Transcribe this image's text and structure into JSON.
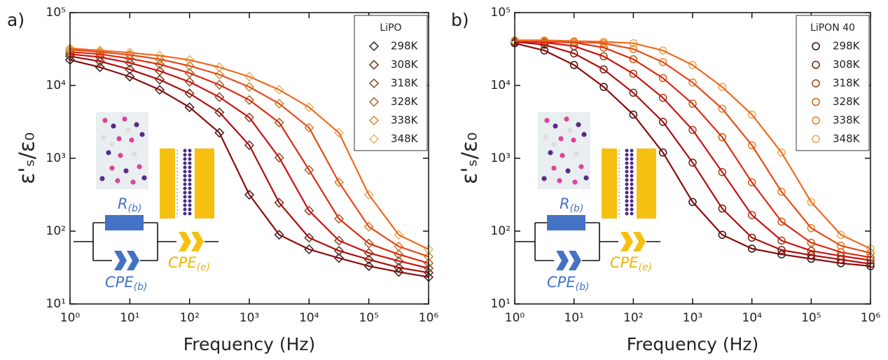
{
  "chart_data": [
    {
      "type": "scatter",
      "panel_label": "a)",
      "x_label": "Frequency (Hz)",
      "y_label": "ε'ₛ/ε₀",
      "legend_title": "LiPO",
      "legend": "upper right",
      "marker": "diamond",
      "xscale": "log",
      "yscale": "log",
      "xlim": [
        1,
        1000000
      ],
      "ylim": [
        10,
        100000
      ],
      "xticks": [
        {
          "value": 1,
          "label": "10⁰"
        },
        {
          "value": 10,
          "label": "10¹"
        },
        {
          "value": 100,
          "label": "10²"
        },
        {
          "value": 1000,
          "label": "10³"
        },
        {
          "value": 10000,
          "label": "10⁴"
        },
        {
          "value": 100000,
          "label": "10⁵"
        },
        {
          "value": 1000000,
          "label": "10⁶"
        }
      ],
      "yticks": [
        {
          "value": 10,
          "label": "10¹"
        },
        {
          "value": 100,
          "label": "10²"
        },
        {
          "value": 1000,
          "label": "10³"
        },
        {
          "value": 10000,
          "label": "10⁴"
        },
        {
          "value": 100000,
          "label": "10⁵"
        }
      ],
      "x": [
        1,
        3.162,
        10,
        31.62,
        100,
        316.2,
        1000,
        3162,
        10000,
        31620,
        100000,
        316200,
        1000000
      ],
      "series": [
        {
          "name": "298K",
          "color": "#3a1c1c",
          "fit_color": "#8b0a0a",
          "values": [
            22400,
            17800,
            13200,
            8710,
            5010,
            2240,
            316,
            89.1,
            56.2,
            42.7,
            33.1,
            27.5,
            23.4
          ]
        },
        {
          "name": "308K",
          "color": "#5e3322",
          "fit_color": "#b00c0c",
          "values": [
            25100,
            21400,
            16600,
            12000,
            7760,
            4270,
            1510,
            245,
            81.3,
            53.7,
            40.7,
            31.6,
            26.9
          ]
        },
        {
          "name": "318K",
          "color": "#7e4b2a",
          "fit_color": "#d01010",
          "values": [
            26900,
            24500,
            20400,
            15800,
            11200,
            6920,
            3630,
            1020,
            191,
            74.1,
            50.1,
            38.9,
            30.9
          ]
        },
        {
          "name": "328K",
          "color": "#a5662c",
          "fit_color": "#e02a10",
          "values": [
            28800,
            26900,
            23400,
            19500,
            14800,
            10200,
            6310,
            3090,
            692,
            148,
            67.6,
            47.9,
            36.3
          ]
        },
        {
          "name": "338K",
          "color": "#cc8a30",
          "fit_color": "#e84a18",
          "values": [
            30900,
            28800,
            26300,
            22900,
            18600,
            14100,
            9550,
            5620,
            2630,
            468,
            115,
            61.7,
            44.7
          ]
        },
        {
          "name": "348K",
          "color": "#eab465",
          "fit_color": "#f06a20",
          "values": [
            32400,
            30200,
            28200,
            25700,
            22400,
            17800,
            13200,
            8710,
            5010,
            2240,
            316,
            89.1,
            56.2
          ]
        }
      ],
      "inset_labels": [
        {
          "text": "R",
          "sub": "(b)"
        },
        {
          "text": "CPE",
          "sub": "(b)"
        },
        {
          "text": "CPE",
          "sub": "(e)"
        }
      ]
    },
    {
      "type": "scatter",
      "panel_label": "b)",
      "x_label": "Frequency (Hz)",
      "y_label": "ε'ₛ/ε₀",
      "legend_title": "LiPON 40",
      "legend": "upper right",
      "marker": "circle",
      "xscale": "log",
      "yscale": "log",
      "xlim": [
        1,
        1000000
      ],
      "ylim": [
        10,
        100000
      ],
      "xticks": [
        {
          "value": 1,
          "label": "10⁰"
        },
        {
          "value": 10,
          "label": "10¹"
        },
        {
          "value": 100,
          "label": "10²"
        },
        {
          "value": 1000,
          "label": "10³"
        },
        {
          "value": 10000,
          "label": "10⁴"
        },
        {
          "value": 100000,
          "label": "10⁵"
        },
        {
          "value": 1000000,
          "label": "10⁶"
        }
      ],
      "yticks": [
        {
          "value": 10,
          "label": "10¹"
        },
        {
          "value": 100,
          "label": "10²"
        },
        {
          "value": 1000,
          "label": "10³"
        },
        {
          "value": 10000,
          "label": "10⁴"
        },
        {
          "value": 100000,
          "label": "10⁵"
        }
      ],
      "x": [
        1,
        3.162,
        10,
        31.62,
        100,
        316.2,
        1000,
        3162,
        10000,
        31620,
        100000,
        316200,
        1000000
      ],
      "series": [
        {
          "name": "298K",
          "color": "#2c1010",
          "fit_color": "#8b0a0a",
          "values": [
            38000,
            30200,
            19100,
            9550,
            3980,
            1200,
            251,
            89.1,
            57.5,
            47.9,
            41.7,
            36.3,
            33.1
          ]
        },
        {
          "name": "308K",
          "color": "#6c2212",
          "fit_color": "#b00c0c",
          "values": [
            39800,
            36300,
            27500,
            16600,
            7940,
            3160,
            871,
            204,
            81.3,
            55.0,
            46.8,
            40.7,
            35.5
          ]
        },
        {
          "name": "318K",
          "color": "#a24212",
          "fit_color": "#d01010",
          "values": [
            40700,
            38900,
            34700,
            25100,
            14500,
            6760,
            2450,
            646,
            166,
            74.1,
            53.7,
            45.7,
            39.8
          ]
        },
        {
          "name": "328K",
          "color": "#c86212",
          "fit_color": "#e02a10",
          "values": [
            40700,
            39800,
            38900,
            33100,
            22900,
            12600,
            5620,
            1950,
            468,
            135,
            69.2,
            51.3,
            43.7
          ]
        },
        {
          "name": "338K",
          "color": "#e08222",
          "fit_color": "#e84a18",
          "values": [
            41700,
            40700,
            39800,
            38000,
            31600,
            20900,
            11000,
            4790,
            1510,
            347,
            110,
            63.1,
            50.1
          ]
        },
        {
          "name": "348K",
          "color": "#f0a845",
          "fit_color": "#f06a20",
          "values": [
            41700,
            41700,
            40700,
            39800,
            38000,
            30200,
            19100,
            9550,
            3980,
            1200,
            251,
            89.1,
            57.5
          ]
        }
      ],
      "inset_labels": [
        {
          "text": "R",
          "sub": "(b)"
        },
        {
          "text": "CPE",
          "sub": "(b)"
        },
        {
          "text": "CPE",
          "sub": "(e)"
        }
      ]
    }
  ]
}
